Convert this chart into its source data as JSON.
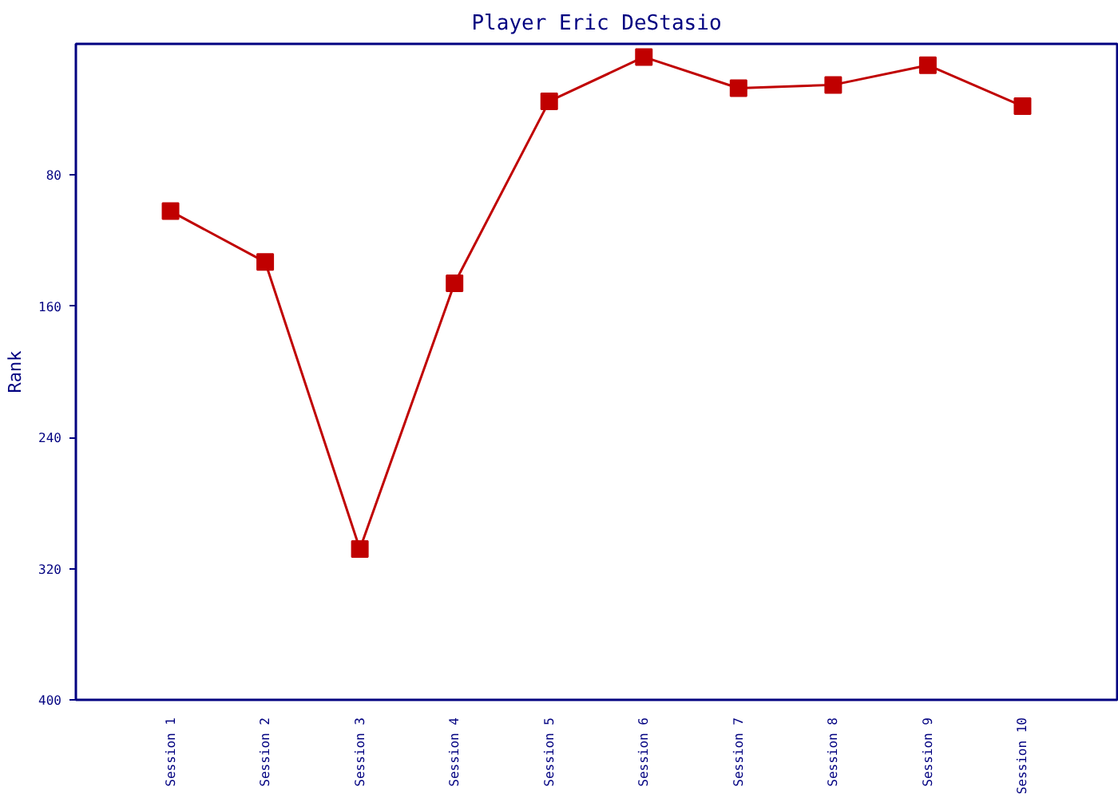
{
  "chart_data": {
    "type": "line",
    "title": "Player Eric DeStasio",
    "ylabel": "Rank",
    "categories": [
      "Session 1",
      "Session 2",
      "Session 3",
      "Session 4",
      "Session 5",
      "Session 6",
      "Session 7",
      "Session 8",
      "Session 9",
      "Session 10"
    ],
    "series": [
      {
        "color": "#c00000",
        "values": [
          102,
          133,
          308,
          146,
          35,
          8,
          27,
          25,
          13,
          38
        ]
      }
    ],
    "ylim": [
      400,
      0
    ],
    "yticks": [
      80,
      160,
      240,
      320,
      400
    ],
    "grid": false,
    "marker": "square",
    "line_style": "solid"
  }
}
